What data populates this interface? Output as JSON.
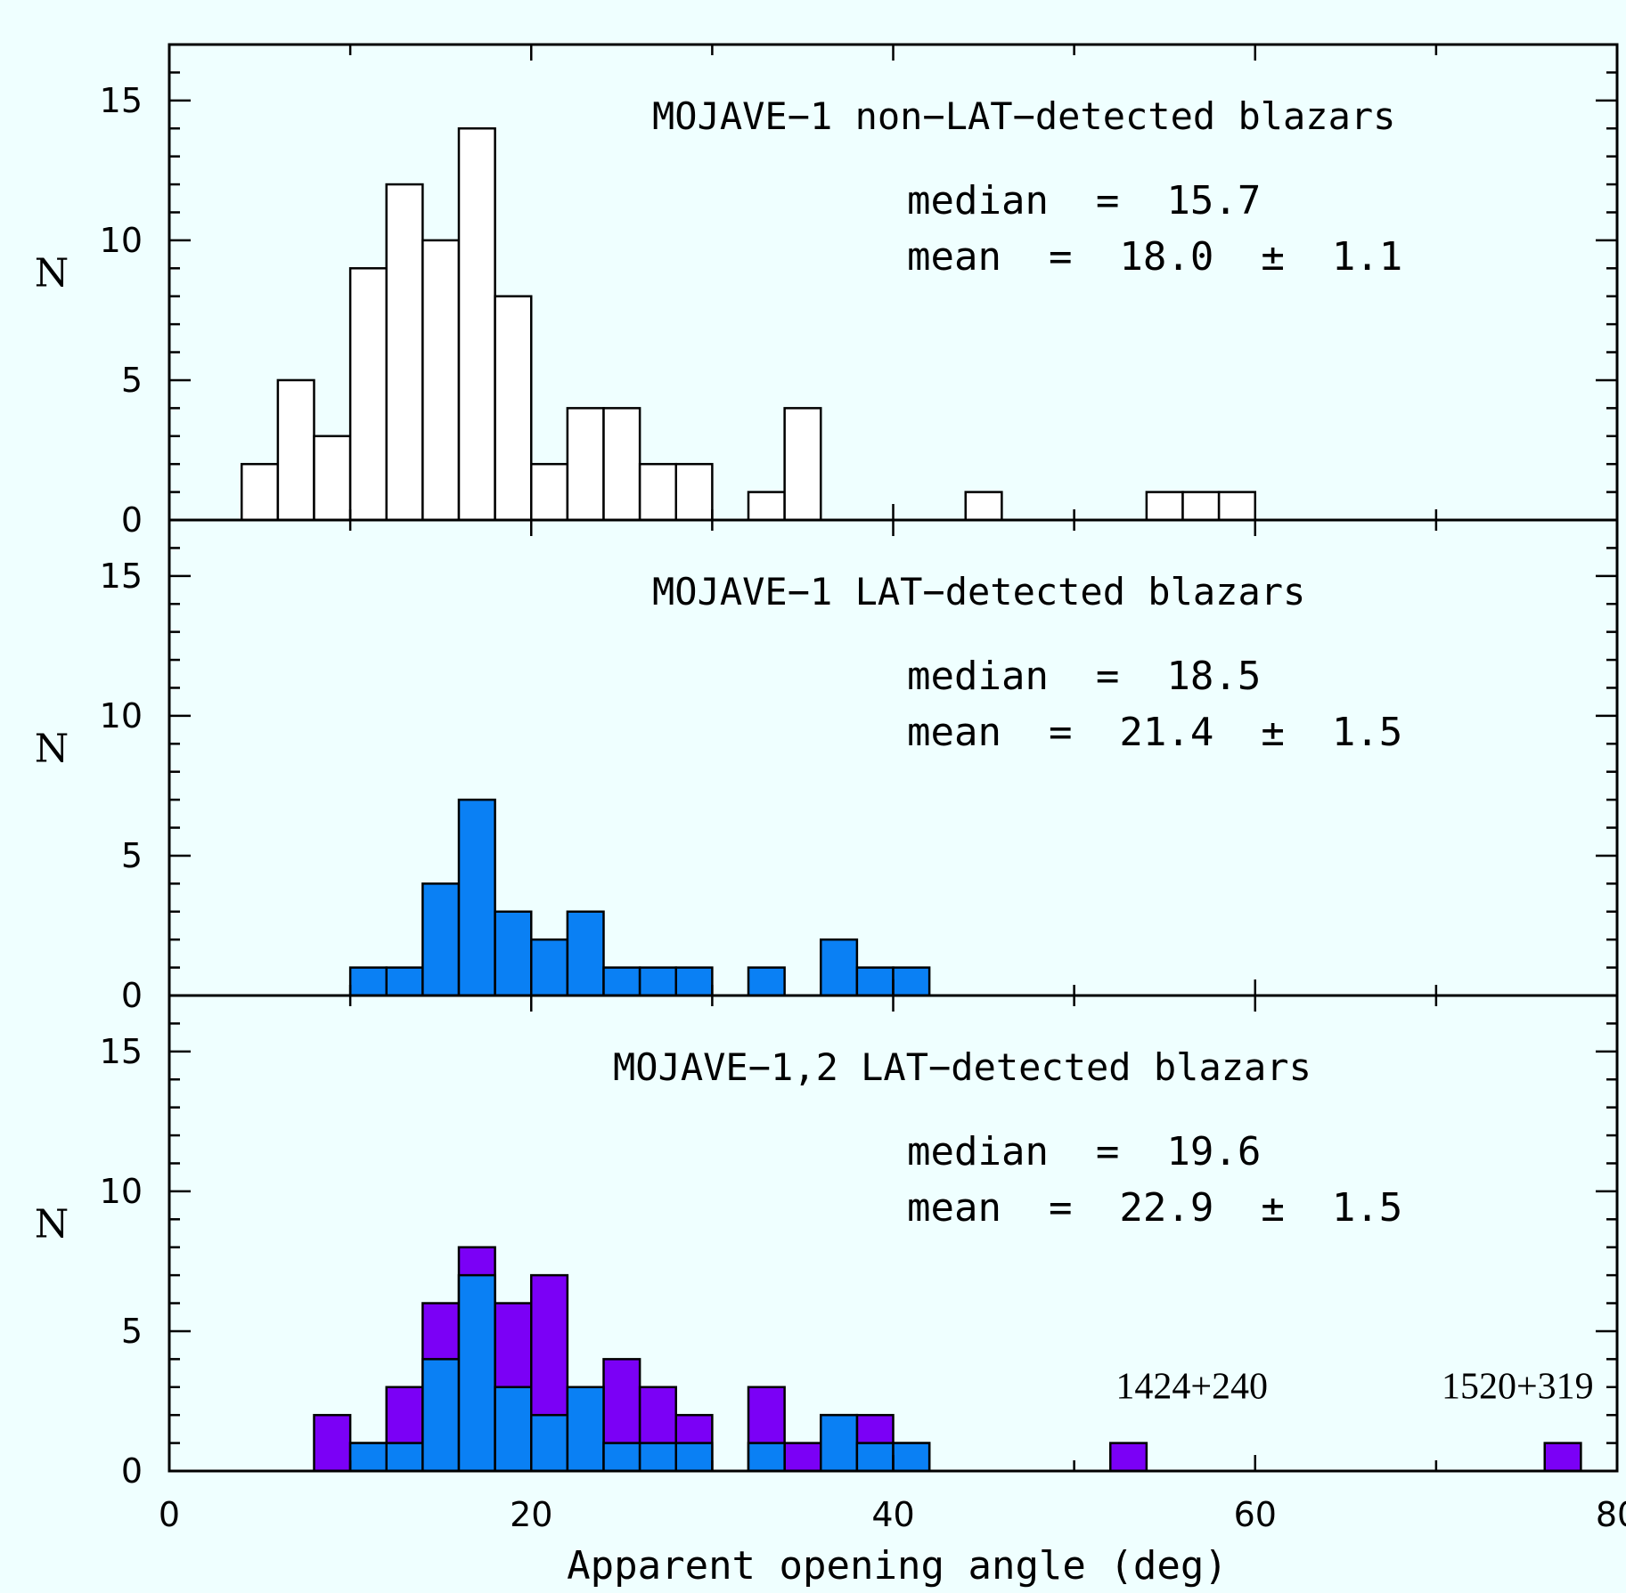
{
  "chart_data": {
    "type": "bar",
    "xlabel": "Apparent opening angle (deg)",
    "ylabel": "N",
    "xlim": [
      0,
      80
    ],
    "ylim": [
      0,
      17
    ],
    "bin_width": 2,
    "x_ticks": [
      "0",
      "20",
      "40",
      "60",
      "80"
    ],
    "y_ticks": [
      "0",
      "5",
      "10",
      "15"
    ],
    "colors": {
      "lat": "#0a80f4",
      "mojave2": "#7b00f6",
      "nonlat": "#ffffff",
      "background": "#efffff"
    },
    "panels": [
      {
        "title": "MOJAVE−1 non−LAT−detected blazars",
        "median_text": "median  =  15.7",
        "mean_text": "mean  =  18.0  ±  1.1",
        "series": [
          {
            "fill": "#ffffff",
            "bins": [
              [
                4,
                2
              ],
              [
                6,
                5
              ],
              [
                8,
                3
              ],
              [
                10,
                9
              ],
              [
                12,
                12
              ],
              [
                14,
                10
              ],
              [
                16,
                14
              ],
              [
                18,
                8
              ],
              [
                20,
                2
              ],
              [
                22,
                4
              ],
              [
                24,
                4
              ],
              [
                26,
                2
              ],
              [
                28,
                2
              ],
              [
                32,
                1
              ],
              [
                34,
                4
              ],
              [
                44,
                1
              ],
              [
                54,
                1
              ],
              [
                56,
                1
              ],
              [
                58,
                1
              ]
            ]
          }
        ]
      },
      {
        "title": "MOJAVE−1 LAT−detected blazars",
        "median_text": "median  =  18.5",
        "mean_text": "mean  =  21.4  ±  1.5",
        "series": [
          {
            "fill": "#0a80f4",
            "bins": [
              [
                10,
                1
              ],
              [
                12,
                1
              ],
              [
                14,
                4
              ],
              [
                16,
                7
              ],
              [
                18,
                3
              ],
              [
                20,
                2
              ],
              [
                22,
                3
              ],
              [
                24,
                1
              ],
              [
                26,
                1
              ],
              [
                28,
                1
              ],
              [
                32,
                1
              ],
              [
                36,
                2
              ],
              [
                38,
                1
              ],
              [
                40,
                1
              ]
            ]
          }
        ]
      },
      {
        "title": "MOJAVE−1,2 LAT−detected blazars",
        "median_text": "median  =  19.6",
        "mean_text": "mean  =  22.9  ±  1.5",
        "series": [
          {
            "fill": "#7b00f6",
            "bins": [
              [
                8,
                2
              ],
              [
                10,
                1
              ],
              [
                12,
                3
              ],
              [
                14,
                6
              ],
              [
                16,
                8
              ],
              [
                18,
                6
              ],
              [
                20,
                7
              ],
              [
                22,
                3
              ],
              [
                24,
                4
              ],
              [
                26,
                3
              ],
              [
                28,
                2
              ],
              [
                32,
                3
              ],
              [
                34,
                1
              ],
              [
                36,
                2
              ],
              [
                38,
                2
              ],
              [
                40,
                1
              ],
              [
                52,
                1
              ],
              [
                76,
                1
              ]
            ]
          },
          {
            "fill": "#0a80f4",
            "bins": [
              [
                10,
                1
              ],
              [
                12,
                1
              ],
              [
                14,
                4
              ],
              [
                16,
                7
              ],
              [
                18,
                3
              ],
              [
                20,
                2
              ],
              [
                22,
                3
              ],
              [
                24,
                1
              ],
              [
                26,
                1
              ],
              [
                28,
                1
              ],
              [
                32,
                1
              ],
              [
                36,
                2
              ],
              [
                38,
                1
              ],
              [
                40,
                1
              ]
            ]
          }
        ],
        "annotations": [
          {
            "text": "1424+240",
            "x": 56.5,
            "y": 2.6
          },
          {
            "text": "1520+319",
            "x": 74.5,
            "y": 2.6
          }
        ]
      }
    ]
  }
}
